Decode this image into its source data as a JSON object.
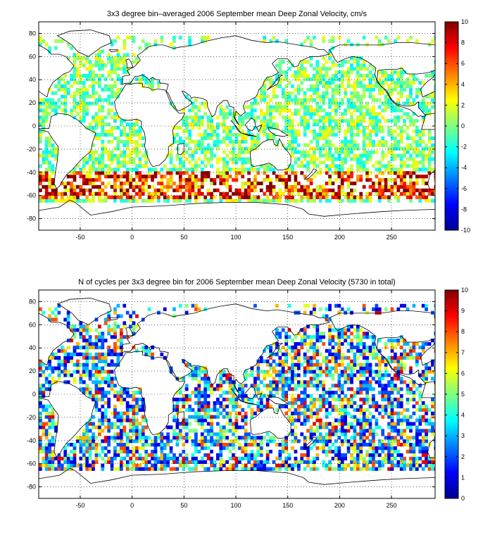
{
  "chart_data": [
    {
      "type": "heatmap",
      "title": "3x3 degree bin–averaged 2006 September mean Deep Zonal Velocity, cm/s",
      "xlim": [
        -90,
        292
      ],
      "ylim": [
        -90,
        90
      ],
      "xticks": [
        -50,
        0,
        50,
        100,
        150,
        200,
        250
      ],
      "yticks": [
        80,
        60,
        40,
        20,
        0,
        -20,
        -40,
        -60,
        -80
      ],
      "grid": true,
      "colormap": "jet",
      "colorbar": {
        "min": -10,
        "max": 10,
        "ticks": [
          10,
          8,
          6,
          4,
          2,
          0,
          -2,
          -4,
          -6,
          -8,
          -10
        ]
      },
      "bin_size_deg": 3
    },
    {
      "type": "heatmap",
      "title": "N of cycles per 3x3 degree bin for 2006 September mean Deep Zonal Velocity (5730 in total)",
      "xlim": [
        -90,
        292
      ],
      "ylim": [
        -90,
        90
      ],
      "xticks": [
        -50,
        0,
        50,
        100,
        150,
        200,
        250
      ],
      "yticks": [
        80,
        60,
        40,
        20,
        0,
        -20,
        -40,
        -60,
        -80
      ],
      "grid": true,
      "colormap": "jet",
      "colorbar": {
        "min": 0,
        "max": 10,
        "ticks": [
          10,
          9,
          8,
          7,
          6,
          5,
          4,
          3,
          2,
          1,
          0
        ]
      },
      "bin_size_deg": 3
    }
  ]
}
